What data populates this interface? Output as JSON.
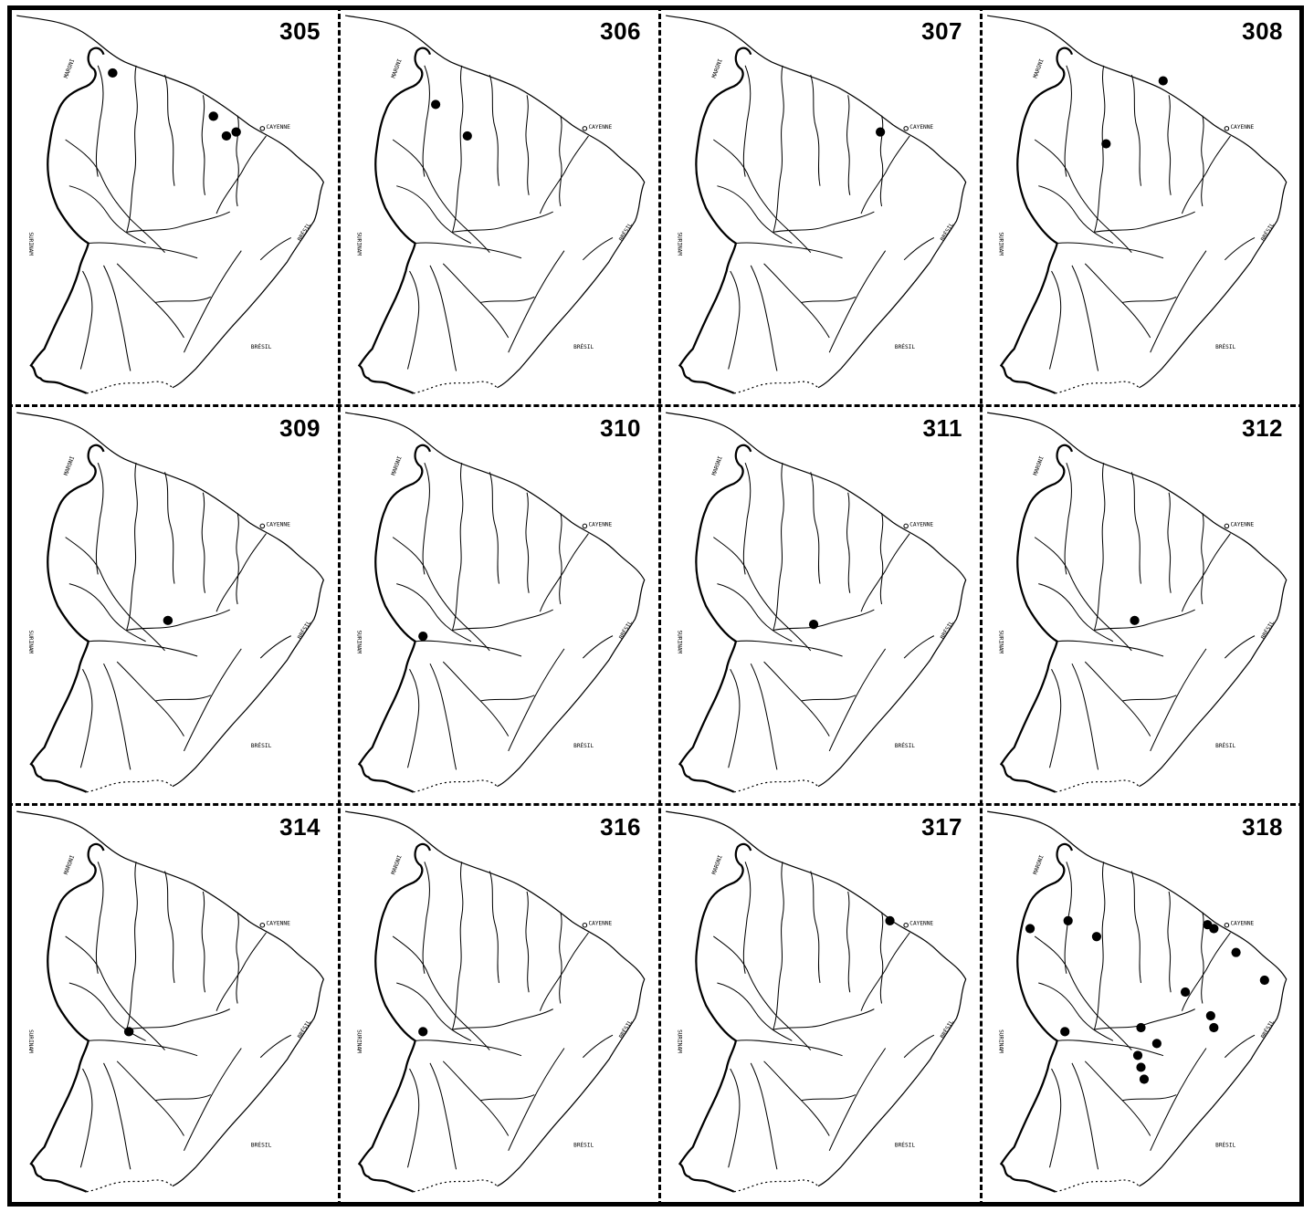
{
  "figure": {
    "border_color": "#000000",
    "background": "#ffffff",
    "labels": {
      "town": "CAYENNE",
      "south": "BRÉSIL",
      "west": "SURINAM",
      "east": "BRÉSIL",
      "river": "MARONI"
    },
    "rows": [
      [
        {
          "number": "305",
          "dots": [
            [
              0.31,
              0.16
            ],
            [
              0.62,
              0.27
            ],
            [
              0.66,
              0.32
            ],
            [
              0.69,
              0.31
            ]
          ]
        },
        {
          "number": "306",
          "dots": [
            [
              0.3,
              0.24
            ],
            [
              0.4,
              0.32
            ]
          ]
        },
        {
          "number": "307",
          "dots": [
            [
              0.69,
              0.31
            ]
          ]
        },
        {
          "number": "308",
          "dots": [
            [
              0.57,
              0.18
            ],
            [
              0.39,
              0.34
            ]
          ]
        }
      ],
      [
        {
          "number": "309",
          "dots": [
            [
              0.48,
              0.54
            ]
          ]
        },
        {
          "number": "310",
          "dots": [
            [
              0.26,
              0.58
            ]
          ]
        },
        {
          "number": "311",
          "dots": [
            [
              0.48,
              0.55
            ]
          ]
        },
        {
          "number": "312",
          "dots": [
            [
              0.48,
              0.54
            ]
          ]
        }
      ],
      [
        {
          "number": "314",
          "dots": [
            [
              0.36,
              0.57
            ]
          ]
        },
        {
          "number": "316",
          "dots": [
            [
              0.26,
              0.57
            ]
          ]
        },
        {
          "number": "317",
          "dots": [
            [
              0.72,
              0.29
            ]
          ]
        },
        {
          "number": "318",
          "dots": [
            [
              0.15,
              0.31
            ],
            [
              0.27,
              0.29
            ],
            [
              0.36,
              0.33
            ],
            [
              0.71,
              0.3
            ],
            [
              0.73,
              0.31
            ],
            [
              0.8,
              0.37
            ],
            [
              0.89,
              0.44
            ],
            [
              0.64,
              0.47
            ],
            [
              0.5,
              0.56
            ],
            [
              0.73,
              0.56
            ],
            [
              0.72,
              0.53
            ],
            [
              0.26,
              0.57
            ],
            [
              0.55,
              0.6
            ],
            [
              0.49,
              0.63
            ],
            [
              0.5,
              0.66
            ],
            [
              0.51,
              0.69
            ]
          ]
        }
      ]
    ]
  }
}
